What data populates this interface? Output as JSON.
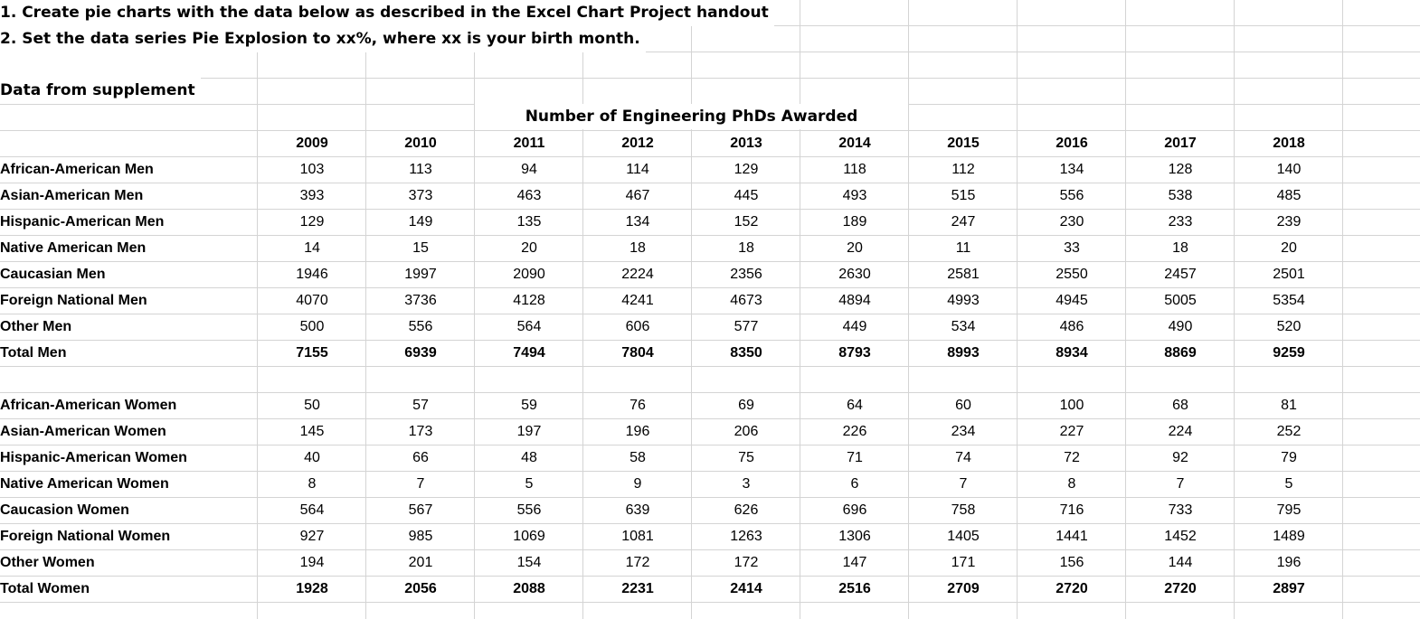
{
  "instructions": [
    "1. Create pie charts with the data below as described in the Excel Chart Project handout",
    "2. Set the data series Pie Explosion to xx%, where xx is your birth month."
  ],
  "section_title": "Data from supplement",
  "table_caption": "Number of Engineering PhDs Awarded",
  "years": [
    "2009",
    "2010",
    "2011",
    "2012",
    "2013",
    "2014",
    "2015",
    "2016",
    "2017",
    "2018"
  ],
  "men": [
    {
      "label": "African-American Men",
      "values": [
        "103",
        "113",
        "94",
        "114",
        "129",
        "118",
        "112",
        "134",
        "128",
        "140"
      ]
    },
    {
      "label": "Asian-American Men",
      "values": [
        "393",
        "373",
        "463",
        "467",
        "445",
        "493",
        "515",
        "556",
        "538",
        "485"
      ]
    },
    {
      "label": "Hispanic-American Men",
      "values": [
        "129",
        "149",
        "135",
        "134",
        "152",
        "189",
        "247",
        "230",
        "233",
        "239"
      ]
    },
    {
      "label": "Native American Men",
      "values": [
        "14",
        "15",
        "20",
        "18",
        "18",
        "20",
        "11",
        "33",
        "18",
        "20"
      ]
    },
    {
      "label": "Caucasian Men",
      "values": [
        "1946",
        "1997",
        "2090",
        "2224",
        "2356",
        "2630",
        "2581",
        "2550",
        "2457",
        "2501"
      ]
    },
    {
      "label": "Foreign National Men",
      "values": [
        "4070",
        "3736",
        "4128",
        "4241",
        "4673",
        "4894",
        "4993",
        "4945",
        "5005",
        "5354"
      ]
    },
    {
      "label": "Other Men",
      "values": [
        "500",
        "556",
        "564",
        "606",
        "577",
        "449",
        "534",
        "486",
        "490",
        "520"
      ]
    },
    {
      "label": "Total Men",
      "values": [
        "7155",
        "6939",
        "7494",
        "7804",
        "8350",
        "8793",
        "8993",
        "8934",
        "8869",
        "9259"
      ],
      "total": true
    }
  ],
  "women": [
    {
      "label": "African-American Women",
      "values": [
        "50",
        "57",
        "59",
        "76",
        "69",
        "64",
        "60",
        "100",
        "68",
        "81"
      ]
    },
    {
      "label": "Asian-American Women",
      "values": [
        "145",
        "173",
        "197",
        "196",
        "206",
        "226",
        "234",
        "227",
        "224",
        "252"
      ]
    },
    {
      "label": "Hispanic-American Women",
      "values": [
        "40",
        "66",
        "48",
        "58",
        "75",
        "71",
        "74",
        "72",
        "92",
        "79"
      ]
    },
    {
      "label": "Native American Women",
      "values": [
        "8",
        "7",
        "5",
        "9",
        "3",
        "6",
        "7",
        "8",
        "7",
        "5"
      ]
    },
    {
      "label": "Caucasion Women",
      "values": [
        "564",
        "567",
        "556",
        "639",
        "626",
        "696",
        "758",
        "716",
        "733",
        "795"
      ]
    },
    {
      "label": "Foreign National Women",
      "values": [
        "927",
        "985",
        "1069",
        "1081",
        "1263",
        "1306",
        "1405",
        "1441",
        "1452",
        "1489"
      ]
    },
    {
      "label": "Other Women",
      "values": [
        "194",
        "201",
        "154",
        "172",
        "172",
        "147",
        "171",
        "156",
        "144",
        "196"
      ]
    },
    {
      "label": "Total Women",
      "values": [
        "1928",
        "2056",
        "2088",
        "2231",
        "2414",
        "2516",
        "2709",
        "2720",
        "2720",
        "2897"
      ],
      "total": true
    }
  ],
  "colors": {
    "gridline": "#d4d4d4",
    "text": "#000000",
    "background": "#ffffff"
  }
}
